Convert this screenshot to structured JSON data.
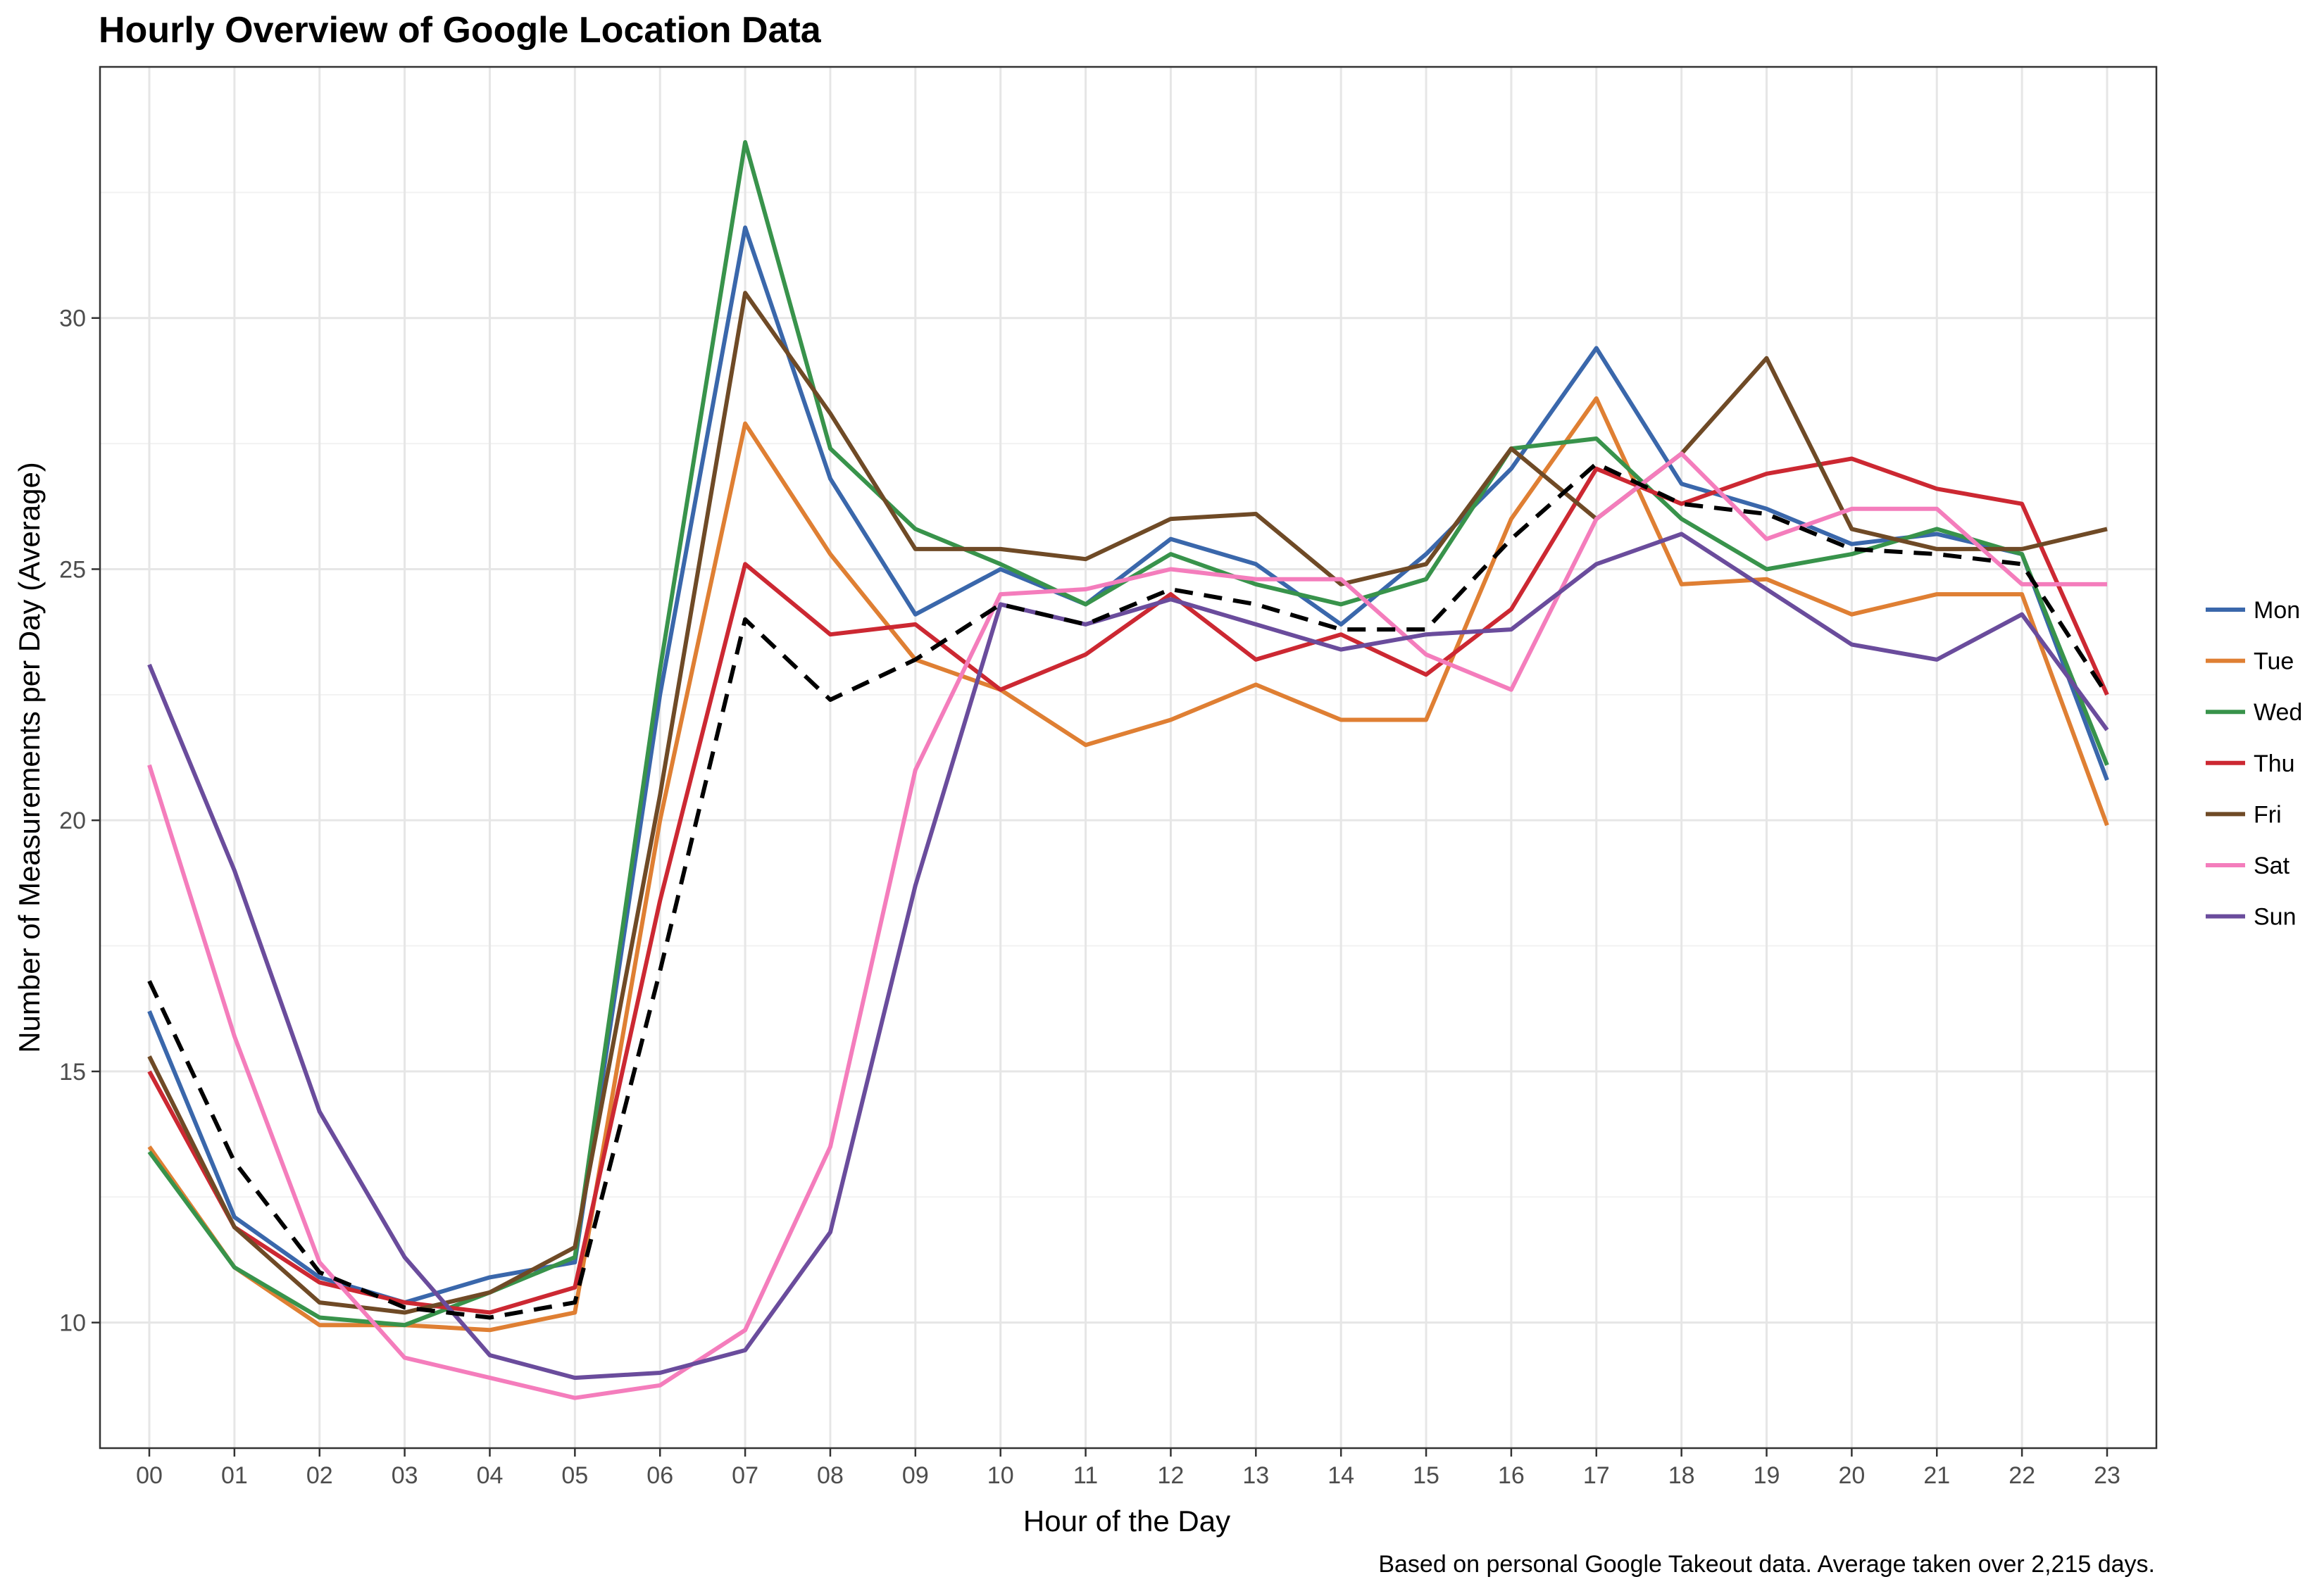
{
  "chart_data": {
    "type": "line",
    "title": "Hourly Overview of Google Location Data",
    "xlabel": "Hour of the Day",
    "ylabel": "Number of Measurements per Day (Average)",
    "caption": "Based on personal Google Takeout data. Average taken over 2,215 days.",
    "categories": [
      "00",
      "01",
      "02",
      "03",
      "04",
      "05",
      "06",
      "07",
      "08",
      "09",
      "10",
      "11",
      "12",
      "13",
      "14",
      "15",
      "16",
      "17",
      "18",
      "19",
      "20",
      "21",
      "22",
      "23"
    ],
    "ylim": [
      7.5,
      35.0
    ],
    "yticks": [
      10,
      15,
      20,
      25,
      30
    ],
    "grid": true,
    "legend_position": "right",
    "series": [
      {
        "name": "Mon",
        "color": "#3a67ab",
        "dashed": false,
        "values": [
          16.2,
          12.1,
          10.9,
          10.4,
          10.9,
          11.2,
          22.5,
          31.8,
          26.8,
          24.1,
          25.0,
          24.3,
          25.6,
          25.1,
          23.9,
          25.3,
          27.0,
          29.4,
          26.7,
          26.2,
          25.5,
          25.7,
          25.3,
          20.8
        ]
      },
      {
        "name": "Tue",
        "color": "#df7f33",
        "dashed": false,
        "values": [
          13.5,
          11.1,
          9.95,
          9.95,
          9.85,
          10.2,
          20.0,
          27.9,
          25.3,
          23.2,
          22.6,
          21.5,
          22.0,
          22.7,
          22.0,
          22.0,
          26.0,
          28.4,
          24.7,
          24.8,
          24.1,
          24.5,
          24.5,
          19.9
        ]
      },
      {
        "name": "Wed",
        "color": "#38934b",
        "dashed": false,
        "values": [
          13.4,
          11.1,
          10.1,
          9.95,
          10.6,
          11.3,
          23.0,
          33.5,
          27.4,
          25.8,
          25.1,
          24.3,
          25.3,
          24.7,
          24.3,
          24.8,
          27.4,
          27.6,
          26.0,
          25.0,
          25.3,
          25.8,
          25.3,
          21.1
        ]
      },
      {
        "name": "Thu",
        "color": "#cc2832",
        "dashed": false,
        "values": [
          15.0,
          11.9,
          10.8,
          10.4,
          10.2,
          10.7,
          18.4,
          25.1,
          23.7,
          23.9,
          22.6,
          23.3,
          24.5,
          23.2,
          23.7,
          22.9,
          24.2,
          27.0,
          26.3,
          26.9,
          27.2,
          26.6,
          26.3,
          22.5
        ]
      },
      {
        "name": "Fri",
        "color": "#6f4a26",
        "dashed": false,
        "values": [
          15.3,
          11.9,
          10.4,
          10.2,
          10.6,
          11.5,
          20.5,
          30.5,
          28.1,
          25.4,
          25.4,
          25.2,
          26.0,
          26.1,
          24.7,
          25.1,
          27.4,
          26.0,
          27.3,
          29.2,
          25.8,
          25.4,
          25.4,
          25.8
        ]
      },
      {
        "name": "Sat",
        "color": "#f47dbc",
        "dashed": false,
        "values": [
          21.1,
          15.7,
          11.2,
          9.3,
          8.9,
          8.5,
          8.75,
          9.85,
          13.5,
          21.0,
          24.5,
          24.6,
          25.0,
          24.8,
          24.8,
          23.3,
          22.6,
          26.0,
          27.3,
          25.6,
          26.2,
          26.2,
          24.7,
          24.7
        ]
      },
      {
        "name": "Sun",
        "color": "#6a4c9c",
        "dashed": false,
        "values": [
          23.1,
          19.0,
          14.2,
          11.3,
          9.35,
          8.9,
          9.0,
          9.45,
          11.8,
          18.7,
          24.3,
          23.9,
          24.4,
          23.9,
          23.4,
          23.7,
          23.8,
          25.1,
          25.7,
          24.6,
          23.5,
          23.2,
          24.1,
          21.8
        ]
      },
      {
        "name": "",
        "color": "#000000",
        "dashed": true,
        "values": [
          16.8,
          13.2,
          11.0,
          10.3,
          10.1,
          10.4,
          17.0,
          24.0,
          22.4,
          23.2,
          24.3,
          23.9,
          24.6,
          24.3,
          23.8,
          23.8,
          25.6,
          27.1,
          26.3,
          26.1,
          25.4,
          25.3,
          25.1,
          22.5
        ]
      }
    ]
  }
}
